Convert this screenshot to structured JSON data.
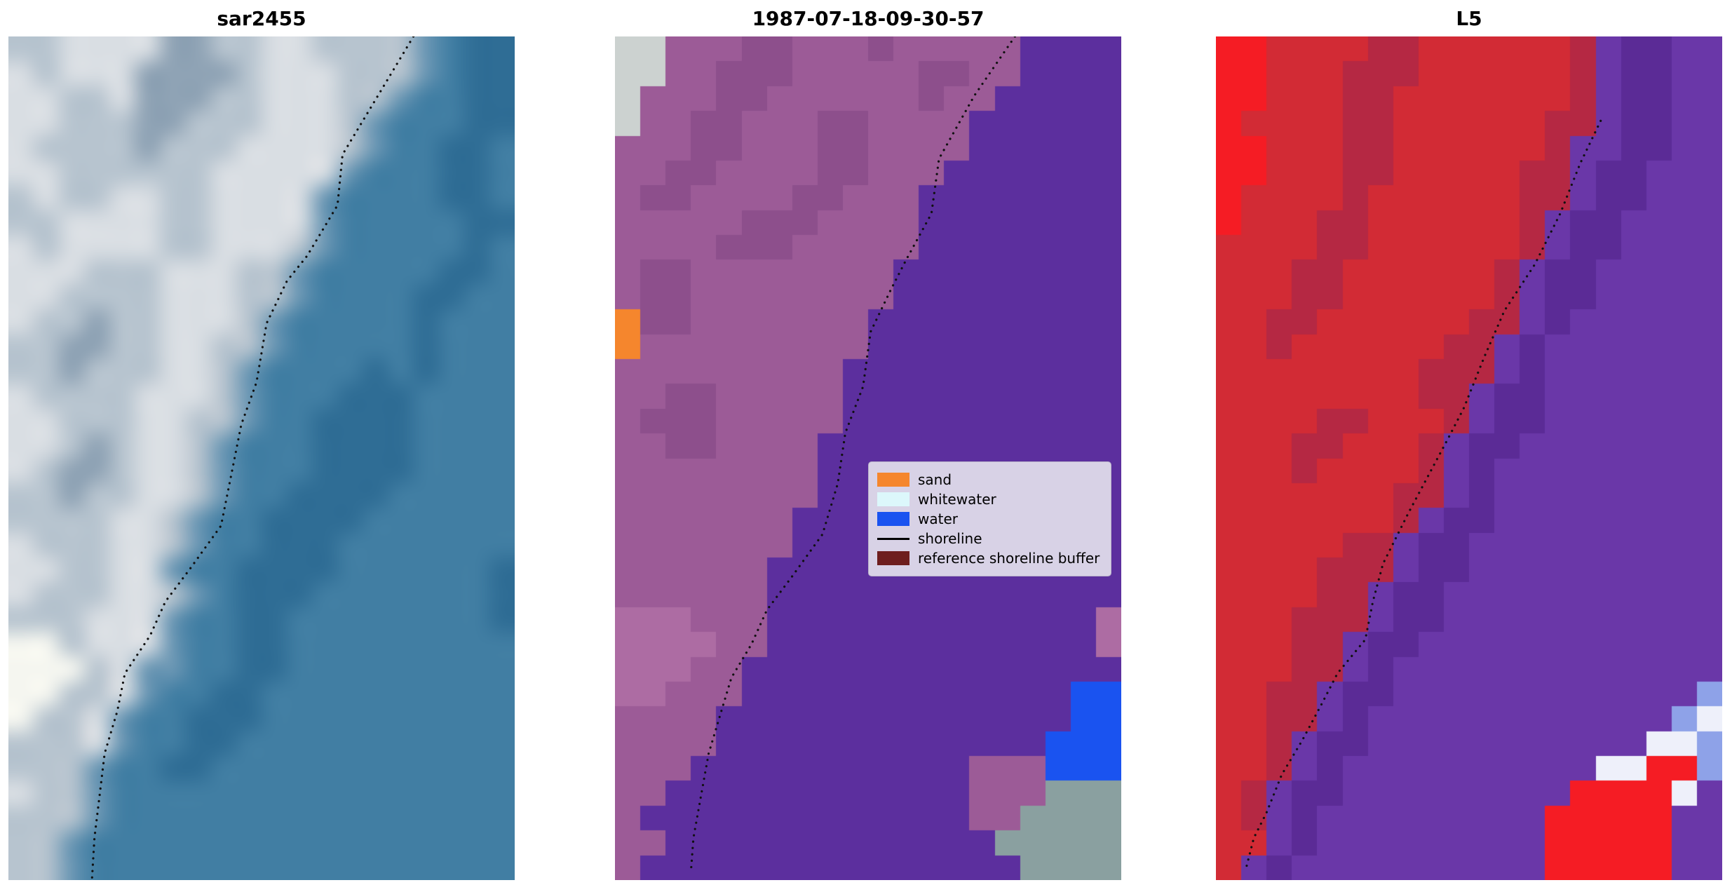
{
  "chart_data": {
    "type": "image",
    "description_visible": "",
    "panels": [
      {
        "title": "sar2455",
        "grid": {
          "cols": 20,
          "rows": 34,
          "smooth": true,
          "palette": {
            "a": "#d9dee3",
            "b": "#b7c4cf",
            "c": "#8fa3b5",
            "d": "#417ea3",
            "e": "#2f6d95",
            "f": "#f5f6f0",
            "g": "#c6cdd2",
            "h": "#6b97b4"
          },
          "pixels": [
            "bbaaaaccbbaabbbbhdee",
            "abaaaccccbaaabbbhdee",
            "aabbacccbbaaabbhddee",
            "aabbbccbbbaaabhdddee",
            "abbbbcbbbaaaabhddeed",
            "aabbbbbbaaaaahdddeed",
            "babbaabbaaaahddddeed",
            "bbaaaabbaaaahdddddee",
            "abaaaabbaaabhddddded",
            "aaabbbaaabbhdddddeed",
            "aabbbbaaabbhddddeedd",
            "abbcbbaaabhdddddeddd",
            "bbccbbaabbhdddddeddd",
            "bbcbbbaabhddddededdd",
            "abbbbaaabhdddeeedddd",
            "aabbbaabbhddeeeedddd",
            "aabcbaabhdddeeeedddd",
            "abccbaabhdddeeeedddd",
            "bbcbbaabhddeeeeddddd",
            "bbbbaabhddeeeedddddd",
            "abbbaabhddeeeddddddd",
            "aabbaahddeeeedddddde",
            "abbbaabhdeeeddddddde",
            "bbbaaahddeedddddddde",
            "ffbaaahddeeddddddddd",
            "fffbahhddeeddddddddd",
            "ffbbahddeedddddddddd",
            "fbbahddeeedddddddddd",
            "bbbahddeeddddddddddd",
            "bbbhddeedddddddddddd",
            "abbhdddddddddddddddd",
            "bbbhdddddddddddddddd",
            "bbhddddddddddddddddd",
            "bbhddddddddddddddddd"
          ]
        },
        "shoreline": {
          "color": "#101010",
          "style": "dotted",
          "points": [
            [
              0.8,
              0.0
            ],
            [
              0.73,
              0.07
            ],
            [
              0.66,
              0.14
            ],
            [
              0.65,
              0.2
            ],
            [
              0.59,
              0.26
            ],
            [
              0.55,
              0.29
            ],
            [
              0.51,
              0.34
            ],
            [
              0.49,
              0.41
            ],
            [
              0.46,
              0.46
            ],
            [
              0.44,
              0.52
            ],
            [
              0.42,
              0.58
            ],
            [
              0.36,
              0.63
            ],
            [
              0.31,
              0.67
            ],
            [
              0.28,
              0.71
            ],
            [
              0.23,
              0.755
            ],
            [
              0.215,
              0.8
            ],
            [
              0.19,
              0.85
            ],
            [
              0.18,
              0.9
            ],
            [
              0.17,
              0.95
            ],
            [
              0.165,
              1.0
            ]
          ]
        }
      },
      {
        "title": "1987-07-18-09-30-57",
        "grid": {
          "cols": 20,
          "rows": 34,
          "smooth": false,
          "palette": {
            "m": "#9c5b97",
            "n": "#8d4f8c",
            "p": "#ad6ca3",
            "q": "#5c2f9e",
            "o": "#f5862d",
            "c": "#ccd2d0",
            "u": "#1a53f0",
            "t": "#8aa0a0"
          },
          "pixels": [
            "ccmmmnnmmmnmmmmmqqqq",
            "ccmmnnnmmmmmnnmmqqqq",
            "cmmmnnmmmmmmnmmqqqqq",
            "cmmnnmmmnnmmmmqqqqqq",
            "mmmnnmmmnnmmmmqqqqqq",
            "mmnnmmmmnnmmmqqqqqqq",
            "mnnmmmmnnmmmqqqqqqqq",
            "mmmmmnnnmmmmqqqqqqqq",
            "mmmmnnnmmmmmqqqqqqqq",
            "mnnmmmmmmmmqqqqqqqqq",
            "mnnmmmmmmmmqqqqqqqqq",
            "onnmmmmmmmqqqqqqqqqq",
            "ommmmmmmmmqqqqqqqqqq",
            "mmmmmmmmmqqqqqqqqqqq",
            "mmnnmmmmmqqqqqqqqqqq",
            "mnnnmmmmmqqqqqqqqqqq",
            "mmnnmmmmqqqqqqqqqqqq",
            "mmmmmmmmqqqqqqqqqqqq",
            "mmmmmmmmqqqqqqqqqqqq",
            "mmmmmmmqqqqqqqqqqqqq",
            "mmmmmmmqqqqqqqqqqqqq",
            "mmmmmmqqqqqqqqqqqqqq",
            "mmmmmmqqqqqqqqqqqqqq",
            "pppmmmqqqqqqqqqqqqqp",
            "ppppmmqqqqqqqqqqqqqp",
            "pppmmqqqqqqqqqqqqqqq",
            "ppmmmqqqqqqqqqqqqquu",
            "mmmmqqqqqqqqqqqqqquu",
            "mmmmqqqqqqqqqqqqquuu",
            "mmmqqqqqqqqqqqmmmuuu",
            "mmqqqqqqqqqqqqmmmttt",
            "mqqqqqqqqqqqqqmmtttt",
            "mmqqqqqqqqqqqqqttttt",
            "mqqqqqqqqqqqqqqqtttt"
          ]
        },
        "shoreline": {
          "color": "#101010",
          "style": "dotted",
          "points": [
            [
              0.79,
              0.0
            ],
            [
              0.71,
              0.07
            ],
            [
              0.64,
              0.145
            ],
            [
              0.625,
              0.21
            ],
            [
              0.575,
              0.265
            ],
            [
              0.545,
              0.3
            ],
            [
              0.505,
              0.35
            ],
            [
              0.49,
              0.415
            ],
            [
              0.455,
              0.47
            ],
            [
              0.44,
              0.53
            ],
            [
              0.41,
              0.59
            ],
            [
              0.35,
              0.64
            ],
            [
              0.3,
              0.68
            ],
            [
              0.27,
              0.72
            ],
            [
              0.23,
              0.76
            ],
            [
              0.21,
              0.8
            ],
            [
              0.185,
              0.85
            ],
            [
              0.17,
              0.9
            ],
            [
              0.155,
              0.95
            ],
            [
              0.15,
              0.99
            ]
          ]
        }
      },
      {
        "title": "L5",
        "grid": {
          "cols": 20,
          "rows": 34,
          "smooth": false,
          "palette": {
            "r": "#d22b35",
            "s": "#f51c24",
            "x": "#b52843",
            "v": "#6a37a8",
            "z": "#5b2b96",
            "f": "#eef0fa",
            "l": "#8ea2e8"
          },
          "pixels": [
            "ssrrrrxxrrrrrrxvzzvv",
            "ssrrrxxxrrrrrrxvzzvv",
            "ssrrrxxrrrrrrrxvzzvv",
            "srrrrxxrrrrrrxxvzzvv",
            "ssrrrxxrrrrrrxvvzzvv",
            "ssrrrxxrrrrrxxvzzvvv",
            "srrrrxrrrrrrxxvzzvvv",
            "srrrxxrrrrrrxvzzvvvv",
            "rrrrxxrrrrrrxvzzvvvv",
            "rrrxxrrrrrrxvzzvvvvv",
            "rrrxxrrrrrrxvzzvvvvv",
            "rrxxrrrrrrxxvzvvvvvv",
            "rrxrrrrrrxxvzvvvvvvv",
            "rrrrrrrrxxxvzvvvvvvv",
            "rrrrrrrrxxvzzvvvvvvv",
            "rrrrxxrrrxvzzvvvvvvv",
            "rrrxxrrrxvzzvvvvvvvv",
            "rrrxrrrrxvzvvvvvvvvv",
            "rrrrrrrxxvzvvvvvvvvv",
            "rrrrrrrxvzzvvvvvvvvv",
            "rrrrrxxvzzvvvvvvvvvv",
            "rrrrxxxvzzvvvvvvvvvv",
            "rrrrxxvzzvvvvvvvvvvv",
            "rrrxxxvzzvvvvvvvvvvv",
            "rrrxxvzzvvvvvvvvvvvv",
            "rrrxxvzvvvvvvvvvvvvv",
            "rrxxvzzvvvvvvvvvvvvl",
            "rrxxvzvvvvvvvvvvvvlf",
            "rrxvzzvvvvvvvvvvvffl",
            "rrxvzvvvvvvvvvvffssl",
            "rxvzzvvvvvvvvvssssfv",
            "rxvzvvvvvvvvvsssssvv",
            "rrvzvvvvvvvvvsssssvv",
            "rvzvvvvvvvvvvsssssvv"
          ]
        },
        "shoreline": {
          "color": "#101010",
          "style": "dotted",
          "points": [
            [
              0.76,
              0.1
            ],
            [
              0.72,
              0.15
            ],
            [
              0.68,
              0.21
            ],
            [
              0.63,
              0.27
            ],
            [
              0.57,
              0.325
            ],
            [
              0.53,
              0.38
            ],
            [
              0.49,
              0.44
            ],
            [
              0.46,
              0.475
            ],
            [
              0.42,
              0.52
            ],
            [
              0.38,
              0.565
            ],
            [
              0.33,
              0.625
            ],
            [
              0.31,
              0.67
            ],
            [
              0.295,
              0.715
            ],
            [
              0.24,
              0.755
            ],
            [
              0.21,
              0.79
            ],
            [
              0.17,
              0.835
            ],
            [
              0.13,
              0.875
            ],
            [
              0.1,
              0.92
            ],
            [
              0.075,
              0.95
            ],
            [
              0.06,
              0.985
            ]
          ]
        }
      }
    ],
    "legend": {
      "background": "#d8d2e6",
      "border": "#b9b3c9",
      "items": [
        {
          "label": "sand",
          "swatch": "#f5862d",
          "kind": "patch"
        },
        {
          "label": "whitewater",
          "swatch": "#dcf7fb",
          "kind": "patch"
        },
        {
          "label": "water",
          "swatch": "#1a53f0",
          "kind": "patch"
        },
        {
          "label": "shoreline",
          "swatch": "#000000",
          "kind": "line"
        },
        {
          "label": "reference shoreline buffer",
          "swatch": "#6e1e1e",
          "kind": "patch"
        }
      ]
    }
  }
}
